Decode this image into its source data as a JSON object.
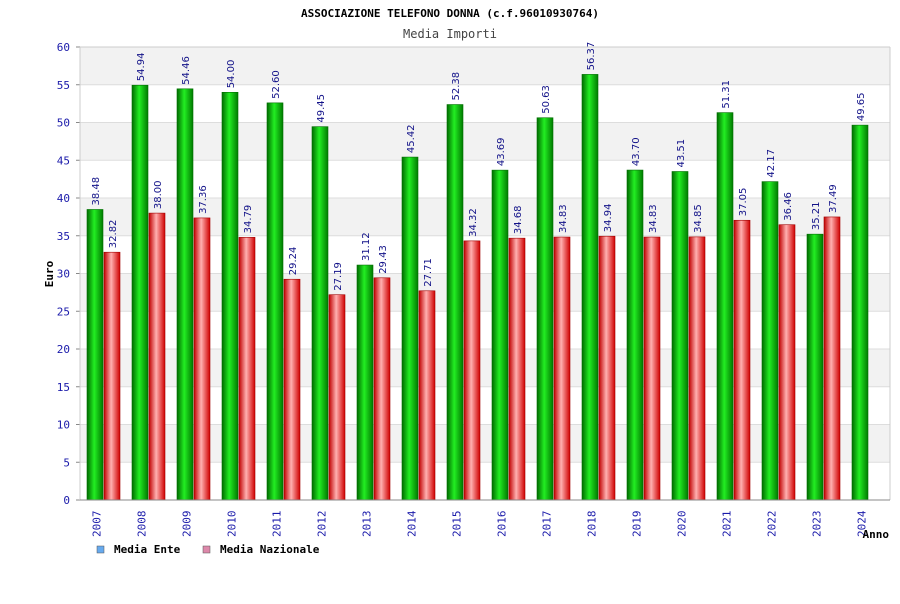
{
  "chart_data": {
    "type": "bar",
    "title": "ASSOCIAZIONE TELEFONO DONNA (c.f.96010930764)",
    "subtitle": "Media Importi",
    "xlabel": "Anno",
    "ylabel": "Euro",
    "ylim": [
      0,
      60
    ],
    "yticks": [
      "0",
      "5",
      "10",
      "15",
      "20",
      "25",
      "30",
      "35",
      "40",
      "45",
      "50",
      "55",
      "60"
    ],
    "grid": true,
    "legend_position": "bottom-left",
    "categories": [
      "2007",
      "2008",
      "2009",
      "2010",
      "2011",
      "2012",
      "2013",
      "2014",
      "2015",
      "2016",
      "2017",
      "2018",
      "2019",
      "2020",
      "2021",
      "2022",
      "2023",
      "2024"
    ],
    "series": [
      {
        "name": "Media Ente",
        "values": [
          38.48,
          54.94,
          54.46,
          54.0,
          52.6,
          49.45,
          31.12,
          45.42,
          52.38,
          43.69,
          50.63,
          56.37,
          43.7,
          43.51,
          51.31,
          42.17,
          35.21,
          49.65
        ],
        "labels": [
          "38.48",
          "54.94",
          "54.46",
          "54.00",
          "52.60",
          "49.45",
          "31.12",
          "45.42",
          "52.38",
          "43.69",
          "50.63",
          "56.37",
          "43.70",
          "43.51",
          "51.31",
          "42.17",
          "35.21",
          "49.65"
        ],
        "color": "#00b000",
        "legend_color": "#66aaee"
      },
      {
        "name": "Media Nazionale",
        "values": [
          32.82,
          38.0,
          37.36,
          34.79,
          29.24,
          27.19,
          29.43,
          27.71,
          34.32,
          34.68,
          34.83,
          34.94,
          34.83,
          34.85,
          37.05,
          36.46,
          37.49,
          null
        ],
        "labels": [
          "32.82",
          "38.00",
          "37.36",
          "34.79",
          "29.24",
          "27.19",
          "29.43",
          "27.71",
          "34.32",
          "34.68",
          "34.83",
          "34.94",
          "34.83",
          "34.85",
          "37.05",
          "36.46",
          "37.49",
          ""
        ],
        "color": "#e01010",
        "legend_color": "#dd88aa"
      }
    ]
  }
}
